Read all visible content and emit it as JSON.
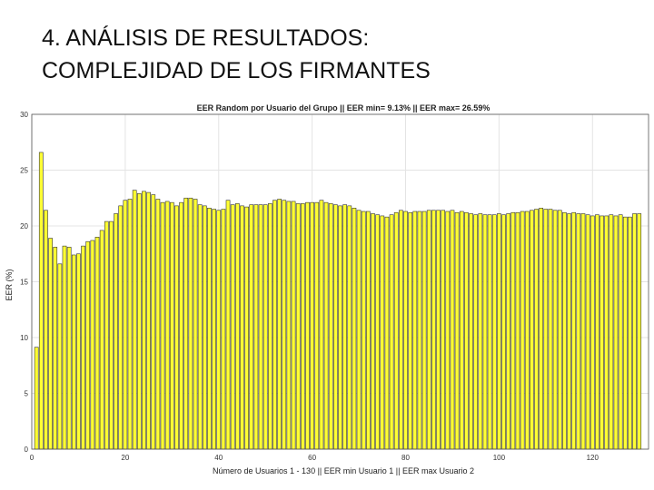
{
  "slide": {
    "title_line1": "4. ANÁLISIS DE RESULTADOS:",
    "title_line2": "COMPLEJIDAD DE LOS FIRMANTES"
  },
  "chart_data": {
    "type": "bar",
    "title": "EER Random por Usuario del Grupo || EER min= 9.13% || EER max= 26.59%",
    "xlabel": "Número de Usuarios 1 - 130 || EER min Usuario 1 || EER max Usuario 2",
    "ylabel": "EER (%)",
    "xlim": [
      0,
      132
    ],
    "ylim": [
      0,
      30
    ],
    "xticks": [
      0,
      20,
      40,
      60,
      80,
      100,
      120
    ],
    "yticks": [
      0,
      5,
      10,
      15,
      20,
      25,
      30
    ],
    "grid": true,
    "bar_color": "#ffff33",
    "bar_edge_color": "#333333",
    "x": [
      1,
      2,
      3,
      4,
      5,
      6,
      7,
      8,
      9,
      10,
      11,
      12,
      13,
      14,
      15,
      16,
      17,
      18,
      19,
      20,
      21,
      22,
      23,
      24,
      25,
      26,
      27,
      28,
      29,
      30,
      31,
      32,
      33,
      34,
      35,
      36,
      37,
      38,
      39,
      40,
      41,
      42,
      43,
      44,
      45,
      46,
      47,
      48,
      49,
      50,
      51,
      52,
      53,
      54,
      55,
      56,
      57,
      58,
      59,
      60,
      61,
      62,
      63,
      64,
      65,
      66,
      67,
      68,
      69,
      70,
      71,
      72,
      73,
      74,
      75,
      76,
      77,
      78,
      79,
      80,
      81,
      82,
      83,
      84,
      85,
      86,
      87,
      88,
      89,
      90,
      91,
      92,
      93,
      94,
      95,
      96,
      97,
      98,
      99,
      100,
      101,
      102,
      103,
      104,
      105,
      106,
      107,
      108,
      109,
      110,
      111,
      112,
      113,
      114,
      115,
      116,
      117,
      118,
      119,
      120,
      121,
      122,
      123,
      124,
      125,
      126,
      127,
      128,
      129,
      130
    ],
    "values": [
      9.13,
      26.59,
      21.4,
      18.9,
      18.1,
      16.6,
      18.2,
      18.1,
      17.4,
      17.5,
      18.2,
      18.6,
      18.7,
      19.0,
      19.6,
      20.4,
      20.4,
      21.1,
      21.8,
      22.3,
      22.4,
      23.2,
      22.9,
      23.1,
      23.0,
      22.8,
      22.4,
      22.1,
      22.2,
      22.1,
      21.8,
      22.1,
      22.5,
      22.5,
      22.4,
      21.9,
      21.8,
      21.6,
      21.5,
      21.4,
      21.5,
      22.3,
      21.9,
      22.0,
      21.8,
      21.7,
      21.9,
      21.9,
      21.9,
      21.9,
      22.0,
      22.3,
      22.4,
      22.3,
      22.2,
      22.2,
      22.0,
      22.0,
      22.1,
      22.1,
      22.1,
      22.3,
      22.1,
      22.0,
      21.9,
      21.8,
      21.9,
      21.8,
      21.6,
      21.4,
      21.3,
      21.3,
      21.1,
      21.0,
      20.9,
      20.8,
      21.0,
      21.2,
      21.4,
      21.3,
      21.2,
      21.3,
      21.3,
      21.3,
      21.4,
      21.4,
      21.4,
      21.4,
      21.3,
      21.4,
      21.2,
      21.3,
      21.2,
      21.1,
      21.0,
      21.1,
      21.0,
      21.0,
      21.0,
      21.1,
      21.0,
      21.1,
      21.2,
      21.2,
      21.3,
      21.3,
      21.4,
      21.5,
      21.6,
      21.5,
      21.5,
      21.4,
      21.4,
      21.2,
      21.1,
      21.2,
      21.1,
      21.1,
      21.0,
      20.9,
      21.0,
      20.9,
      20.9,
      21.0,
      20.9,
      21.0,
      20.8,
      20.8,
      21.1,
      21.1
    ]
  }
}
